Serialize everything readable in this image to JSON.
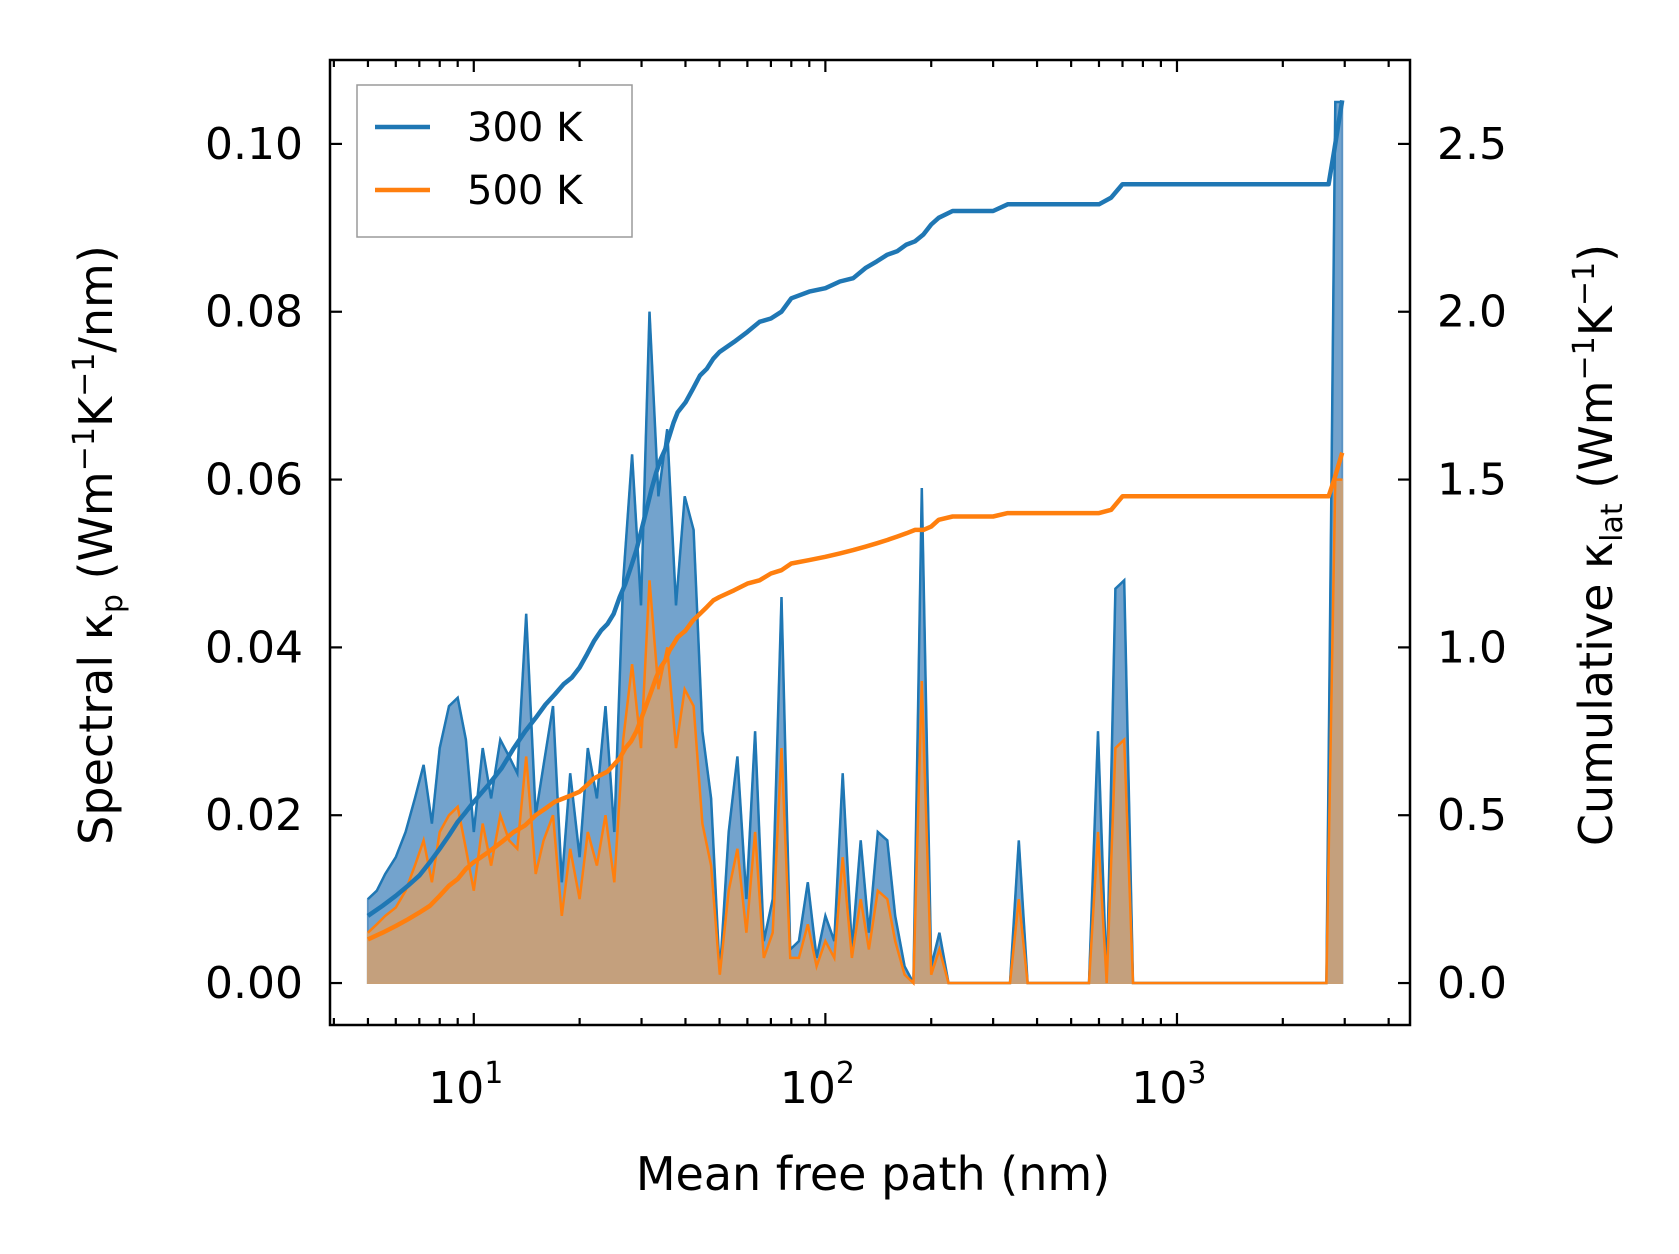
{
  "chart_data": {
    "type": "area",
    "xscale": "log",
    "xlabel": "Mean free path (nm)",
    "x_tick_labels": [
      {
        "value": 10,
        "base": "10",
        "exp": "1"
      },
      {
        "value": 100,
        "base": "10",
        "exp": "2"
      },
      {
        "value": 1000,
        "base": "10",
        "exp": "3"
      }
    ],
    "xlim": [
      3.9,
      4600
    ],
    "ylim_left": [
      -0.005,
      0.11
    ],
    "ylim_right": [
      -0.125,
      2.75
    ],
    "y_left_ticks": [
      "0.00",
      "0.02",
      "0.04",
      "0.06",
      "0.08",
      "0.10"
    ],
    "y_left_tick_values": [
      0,
      0.02,
      0.04,
      0.06,
      0.08,
      0.1
    ],
    "y_right_ticks": [
      "0.0",
      "0.5",
      "1.0",
      "1.5",
      "2.0",
      "2.5"
    ],
    "y_right_tick_values": [
      0,
      0.5,
      1.0,
      1.5,
      2.0,
      2.5
    ],
    "ylabel_left": {
      "prefix": "Spectral κ",
      "sub": "p",
      "mid": " (Wm",
      "sup1": "−1",
      "mid2": "K",
      "sup2": "−1",
      "suffix": "/nm)"
    },
    "ylabel_right": {
      "prefix": "Cumulative κ",
      "sub": "lat",
      "mid": " (Wm",
      "sup1": "−1",
      "mid2": "K",
      "sup2": "−1",
      "suffix": ")"
    },
    "legend": {
      "position": "upper-left",
      "entries": [
        "300 K",
        "500 K"
      ]
    },
    "colors": {
      "s300": "#1f77b4",
      "s500": "#ff7f0e",
      "fill300": "#5b93c4",
      "fill500": "#c8a078"
    },
    "spectral": {
      "x": [
        5.0,
        5.3,
        5.6,
        6.0,
        6.4,
        6.8,
        7.2,
        7.6,
        8.0,
        8.5,
        9.0,
        9.5,
        10.0,
        10.6,
        11.2,
        11.9,
        12.6,
        13.3,
        14.1,
        15.0,
        15.8,
        16.8,
        17.8,
        18.8,
        20.0,
        21.1,
        22.4,
        23.7,
        25.1,
        26.6,
        28.2,
        29.9,
        31.6,
        33.5,
        35.5,
        37.6,
        39.8,
        42.2,
        44.7,
        47.3,
        50.1,
        53.1,
        56.2,
        59.6,
        63.1,
        66.8,
        70.8,
        75.0,
        79.4,
        84.1,
        89.1,
        94.4,
        100.0,
        106.0,
        112.0,
        119.0,
        126.0,
        133.0,
        141.0,
        150.0,
        158.0,
        168.0,
        178.0,
        188.0,
        200.0,
        211.0,
        224.0,
        237.0,
        251.0,
        266.0,
        282.0,
        299.0,
        316.0,
        335.0,
        355.0,
        376.0,
        398.0,
        422.0,
        447.0,
        473.0,
        501.0,
        531.0,
        562.0,
        596.0,
        631.0,
        668.0,
        708.0,
        750.0,
        794.0,
        841.0,
        891.0,
        944.0,
        1000.0,
        1060.0,
        1120.0,
        1190.0,
        1260.0,
        1330.0,
        1410.0,
        1500.0,
        1580.0,
        1680.0,
        1780.0,
        1880.0,
        2000.0,
        2110.0,
        2240.0,
        2370.0,
        2510.0,
        2660.0,
        2820.0,
        2950.0
      ],
      "y300": [
        0.01,
        0.011,
        0.013,
        0.015,
        0.018,
        0.022,
        0.026,
        0.019,
        0.028,
        0.033,
        0.034,
        0.029,
        0.018,
        0.028,
        0.022,
        0.029,
        0.027,
        0.025,
        0.044,
        0.02,
        0.026,
        0.033,
        0.012,
        0.025,
        0.015,
        0.028,
        0.022,
        0.033,
        0.018,
        0.048,
        0.063,
        0.045,
        0.08,
        0.058,
        0.066,
        0.045,
        0.058,
        0.054,
        0.03,
        0.022,
        0.001,
        0.018,
        0.027,
        0.01,
        0.03,
        0.005,
        0.01,
        0.046,
        0.004,
        0.005,
        0.012,
        0.003,
        0.008,
        0.005,
        0.025,
        0.004,
        0.017,
        0.006,
        0.018,
        0.017,
        0.008,
        0.002,
        0.0,
        0.059,
        0.002,
        0.006,
        0.0,
        0.0,
        0.0,
        0.0,
        0.0,
        0.0,
        0.0,
        0.0,
        0.017,
        0.0,
        0.0,
        0.0,
        0.0,
        0.0,
        0.0,
        0.0,
        0.0,
        0.03,
        0.0,
        0.047,
        0.048,
        0.0,
        0.0,
        0.0,
        0.0,
        0.0,
        0.0,
        0.0,
        0.0,
        0.0,
        0.0,
        0.0,
        0.0,
        0.0,
        0.0,
        0.0,
        0.0,
        0.0,
        0.0,
        0.0,
        0.0,
        0.0,
        0.0,
        0.0,
        0.105,
        0.105
      ],
      "y500": [
        0.006,
        0.007,
        0.008,
        0.009,
        0.011,
        0.014,
        0.017,
        0.012,
        0.018,
        0.02,
        0.021,
        0.016,
        0.011,
        0.019,
        0.014,
        0.02,
        0.017,
        0.016,
        0.027,
        0.013,
        0.017,
        0.02,
        0.008,
        0.016,
        0.01,
        0.018,
        0.014,
        0.02,
        0.012,
        0.029,
        0.038,
        0.028,
        0.048,
        0.035,
        0.04,
        0.028,
        0.035,
        0.033,
        0.019,
        0.014,
        0.001,
        0.011,
        0.016,
        0.006,
        0.018,
        0.003,
        0.006,
        0.028,
        0.003,
        0.003,
        0.007,
        0.002,
        0.005,
        0.003,
        0.015,
        0.003,
        0.01,
        0.004,
        0.011,
        0.01,
        0.005,
        0.001,
        0.0,
        0.036,
        0.001,
        0.004,
        0.0,
        0.0,
        0.0,
        0.0,
        0.0,
        0.0,
        0.0,
        0.0,
        0.01,
        0.0,
        0.0,
        0.0,
        0.0,
        0.0,
        0.0,
        0.0,
        0.0,
        0.018,
        0.0,
        0.028,
        0.029,
        0.0,
        0.0,
        0.0,
        0.0,
        0.0,
        0.0,
        0.0,
        0.0,
        0.0,
        0.0,
        0.0,
        0.0,
        0.0,
        0.0,
        0.0,
        0.0,
        0.0,
        0.0,
        0.0,
        0.0,
        0.0,
        0.0,
        0.0,
        0.06,
        0.06
      ]
    },
    "cumulative": {
      "x": [
        5.0,
        5.5,
        6.0,
        6.5,
        7.0,
        7.5,
        8.0,
        8.5,
        9.0,
        9.5,
        10.0,
        11.0,
        12.0,
        13.0,
        14.0,
        15.0,
        16.0,
        17.0,
        18.0,
        19.0,
        20.0,
        21.0,
        22.0,
        23.0,
        24.0,
        25.0,
        26.0,
        27.0,
        28.0,
        29.0,
        30.0,
        31.0,
        32.0,
        33.0,
        34.0,
        35.0,
        36.0,
        37.0,
        38.0,
        40.0,
        42.0,
        44.0,
        46.0,
        48.0,
        50.0,
        55.0,
        60.0,
        65.0,
        70.0,
        75.0,
        80.0,
        90.0,
        100.0,
        110.0,
        120.0,
        130.0,
        140.0,
        150.0,
        160.0,
        170.0,
        180.0,
        190.0,
        200.0,
        210.0,
        230.0,
        300.0,
        330.0,
        400.0,
        500.0,
        600.0,
        650.0,
        700.0,
        800.0,
        1000.0,
        1500.0,
        2000.0,
        2700.0,
        2800.0,
        2950.0
      ],
      "y300": [
        0.2,
        0.23,
        0.26,
        0.29,
        0.32,
        0.36,
        0.4,
        0.44,
        0.48,
        0.51,
        0.54,
        0.59,
        0.64,
        0.7,
        0.75,
        0.79,
        0.83,
        0.86,
        0.89,
        0.91,
        0.94,
        0.98,
        1.02,
        1.05,
        1.07,
        1.1,
        1.15,
        1.19,
        1.24,
        1.29,
        1.35,
        1.41,
        1.47,
        1.52,
        1.56,
        1.59,
        1.63,
        1.67,
        1.7,
        1.73,
        1.77,
        1.81,
        1.83,
        1.86,
        1.88,
        1.91,
        1.94,
        1.97,
        1.98,
        2.0,
        2.04,
        2.06,
        2.07,
        2.09,
        2.1,
        2.13,
        2.15,
        2.17,
        2.18,
        2.2,
        2.21,
        2.23,
        2.26,
        2.28,
        2.3,
        2.3,
        2.32,
        2.32,
        2.32,
        2.32,
        2.34,
        2.38,
        2.38,
        2.38,
        2.38,
        2.38,
        2.38,
        2.48,
        2.63
      ],
      "y500": [
        0.13,
        0.15,
        0.17,
        0.19,
        0.21,
        0.23,
        0.26,
        0.29,
        0.31,
        0.34,
        0.36,
        0.39,
        0.42,
        0.45,
        0.47,
        0.5,
        0.52,
        0.54,
        0.55,
        0.56,
        0.57,
        0.59,
        0.61,
        0.62,
        0.63,
        0.65,
        0.67,
        0.7,
        0.72,
        0.75,
        0.79,
        0.83,
        0.87,
        0.91,
        0.94,
        0.96,
        0.99,
        1.01,
        1.03,
        1.05,
        1.08,
        1.1,
        1.12,
        1.14,
        1.15,
        1.17,
        1.19,
        1.2,
        1.22,
        1.23,
        1.25,
        1.26,
        1.27,
        1.28,
        1.29,
        1.3,
        1.31,
        1.32,
        1.33,
        1.34,
        1.35,
        1.35,
        1.36,
        1.38,
        1.39,
        1.39,
        1.4,
        1.4,
        1.4,
        1.4,
        1.41,
        1.45,
        1.45,
        1.45,
        1.45,
        1.45,
        1.45,
        1.5,
        1.58
      ]
    }
  }
}
